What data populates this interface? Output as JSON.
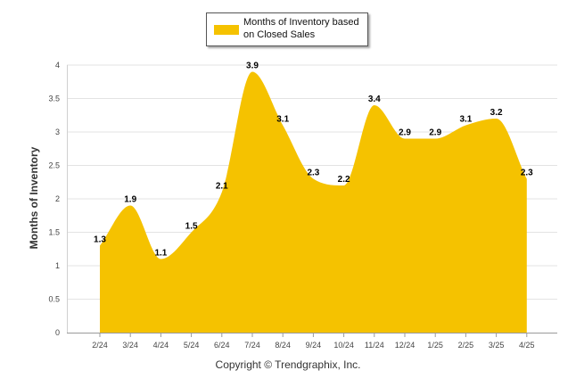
{
  "legend": {
    "label": "Months of Inventory based on Closed Sales",
    "color": "#F5C200"
  },
  "footer": {
    "copyright": "Copyright © Trendgraphix, Inc."
  },
  "chart_data": {
    "type": "area",
    "categories": [
      "2/24",
      "3/24",
      "4/24",
      "5/24",
      "6/24",
      "7/24",
      "8/24",
      "9/24",
      "10/24",
      "11/24",
      "12/24",
      "1/25",
      "2/25",
      "3/25",
      "4/25"
    ],
    "series": [
      {
        "name": "Months of Inventory based on Closed Sales",
        "values": [
          1.3,
          1.9,
          1.1,
          1.5,
          2.1,
          3.9,
          3.1,
          2.3,
          2.2,
          3.4,
          2.9,
          2.9,
          3.1,
          3.2,
          2.3
        ],
        "color": "#F5C200"
      }
    ],
    "data_labels": [
      "1.3",
      "1.9",
      "1.1",
      "1.5",
      "2.1",
      "3.9",
      "3.1",
      "2.3",
      "2.2",
      "3.4",
      "2.9",
      "2.9",
      "3.1",
      "3.2",
      "2.3"
    ],
    "y_ticks": [
      "0",
      "0.5",
      "1",
      "1.5",
      "2",
      "2.5",
      "3",
      "3.5",
      "4"
    ],
    "ylim": [
      0,
      4
    ],
    "xlabel": "",
    "ylabel": "Months of Inventory",
    "grid": true,
    "legend_position": "top-center"
  }
}
